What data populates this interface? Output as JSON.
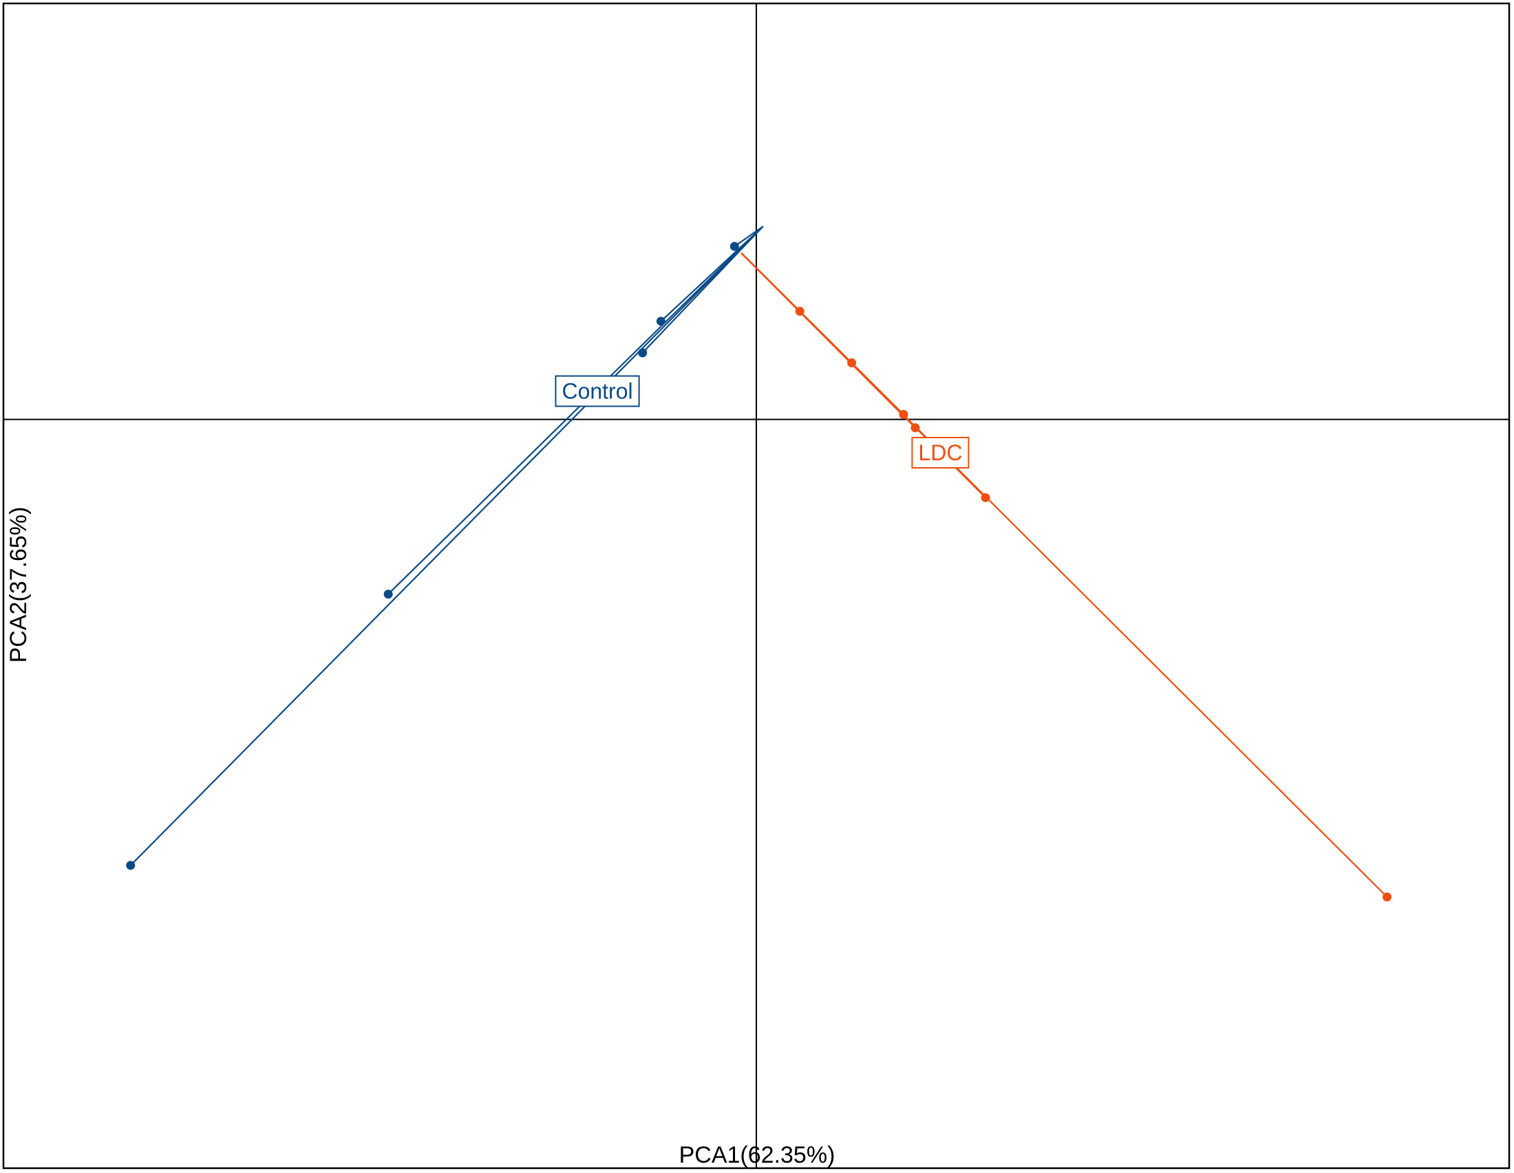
{
  "chart_data": {
    "type": "scatter",
    "xlabel": "PCA1(62.35%)",
    "ylabel": "PCA2(37.65%)",
    "xlim": [
      -4.5,
      4.5
    ],
    "ylim": [
      -4.5,
      2.5
    ],
    "grid": false,
    "reference_lines": {
      "x": 0,
      "y": 0
    },
    "series": [
      {
        "name": "Control",
        "color": "#0b4a86",
        "centroid": [
          0.04,
          1.16
        ],
        "label_at": [
          -0.95,
          0.17
        ],
        "points": [
          [
            -3.74,
            -2.68
          ],
          [
            -2.2,
            -1.05
          ],
          [
            -0.57,
            0.59
          ],
          [
            -0.68,
            0.4
          ],
          [
            -0.13,
            1.04
          ]
        ]
      },
      {
        "name": "LDC",
        "color": "#f04e0e",
        "centroid": [
          -0.09,
          1.0
        ],
        "label_at": [
          1.1,
          -0.2
        ],
        "points": [
          [
            0.26,
            0.65
          ],
          [
            0.57,
            0.34
          ],
          [
            0.88,
            0.03
          ],
          [
            0.95,
            -0.05
          ],
          [
            1.37,
            -0.47
          ],
          [
            3.77,
            -2.87
          ]
        ]
      }
    ]
  }
}
